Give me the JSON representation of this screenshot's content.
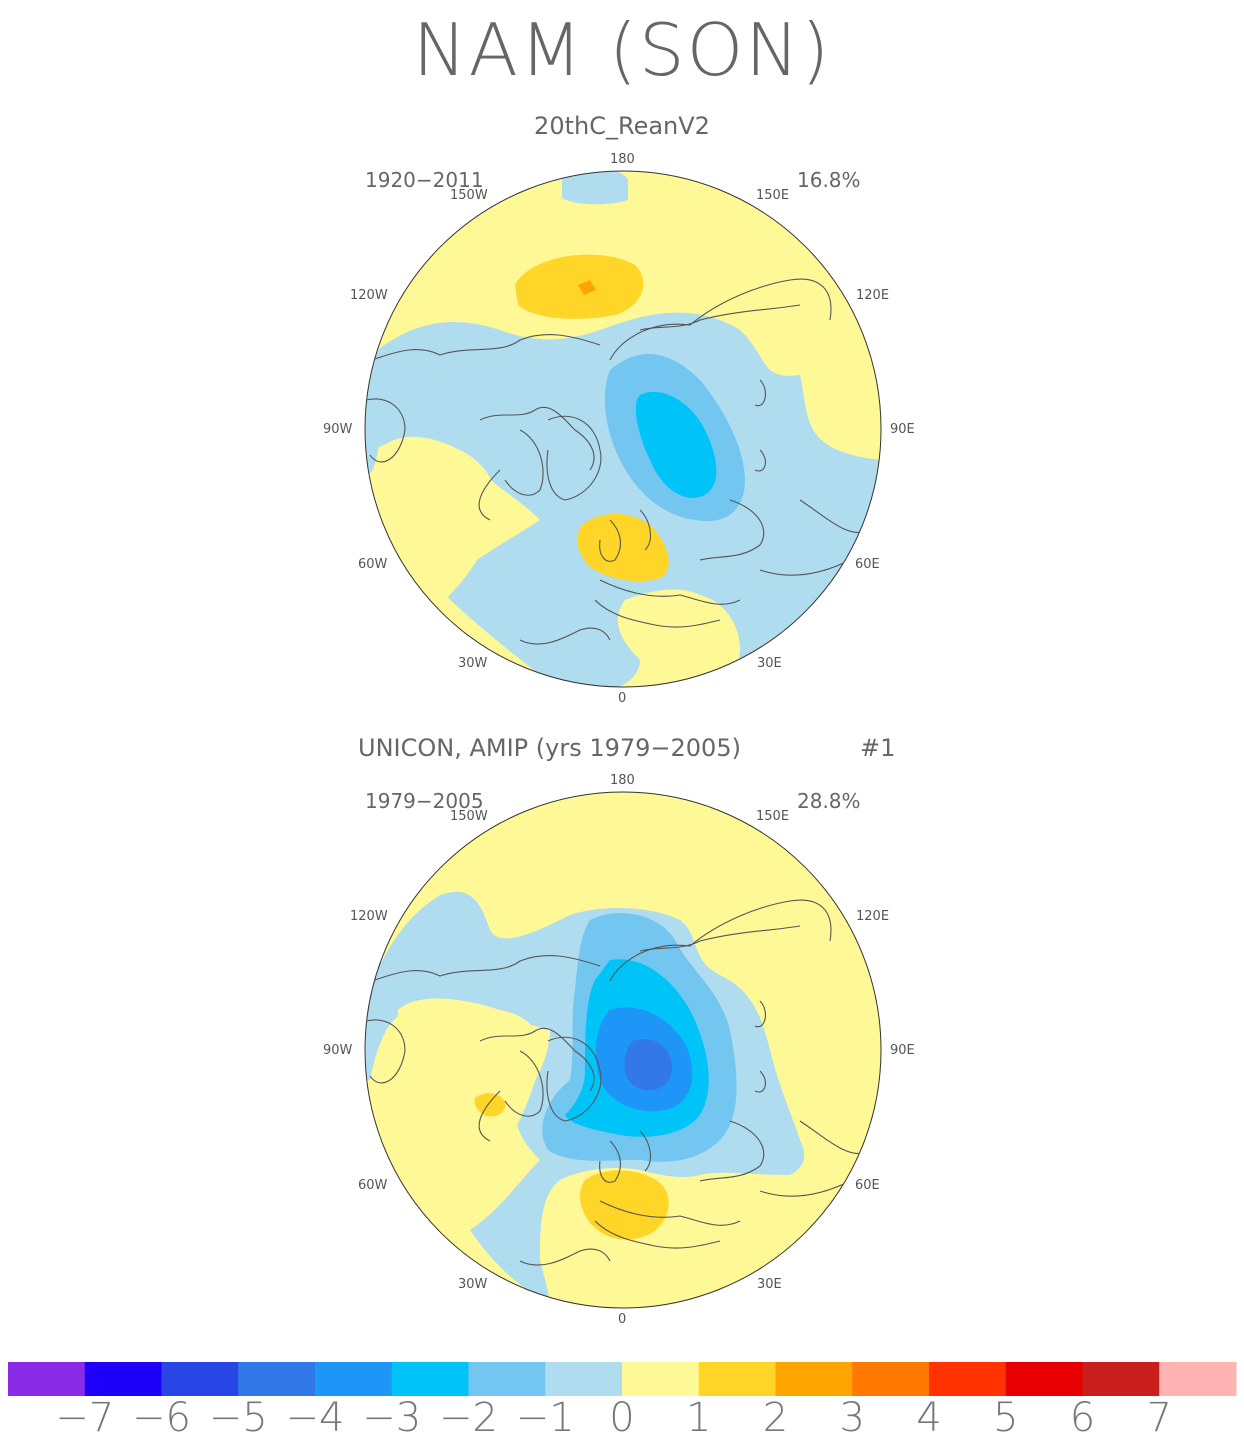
{
  "title": "NAM (SON)",
  "panels": [
    {
      "title": "20thC_ReanV2",
      "years": "1920−2011",
      "variance": "16.8%",
      "number_label": ""
    },
    {
      "title": "UNICON, AMIP (yrs 1979−2005)",
      "years": "1979−2005",
      "variance": "28.8%",
      "number_label": "#1"
    }
  ],
  "longitude_labels": {
    "top": "180",
    "nw1": "150W",
    "ne1": "150E",
    "nw2": "120W",
    "ne2": "120E",
    "w": "90W",
    "e": "90E",
    "sw2": "60W",
    "se2": "60E",
    "sw1": "30W",
    "se1": "30E",
    "bottom": "0"
  },
  "colorbar": {
    "labels": [
      "−7",
      "−6",
      "−5",
      "−4",
      "−3",
      "−2",
      "−1",
      "0",
      "1",
      "2",
      "3",
      "4",
      "5",
      "6",
      "7"
    ],
    "colors": [
      "#8a2be8",
      "#1e00f8",
      "#2846e6",
      "#3378e8",
      "#1e96f8",
      "#00c4f8",
      "#73c6f0",
      "#b0dcf0",
      "#fff896",
      "#ffd528",
      "#ffa500",
      "#ff7800",
      "#ff3200",
      "#e60000",
      "#c81e1e",
      "#ffb4b4"
    ]
  }
}
